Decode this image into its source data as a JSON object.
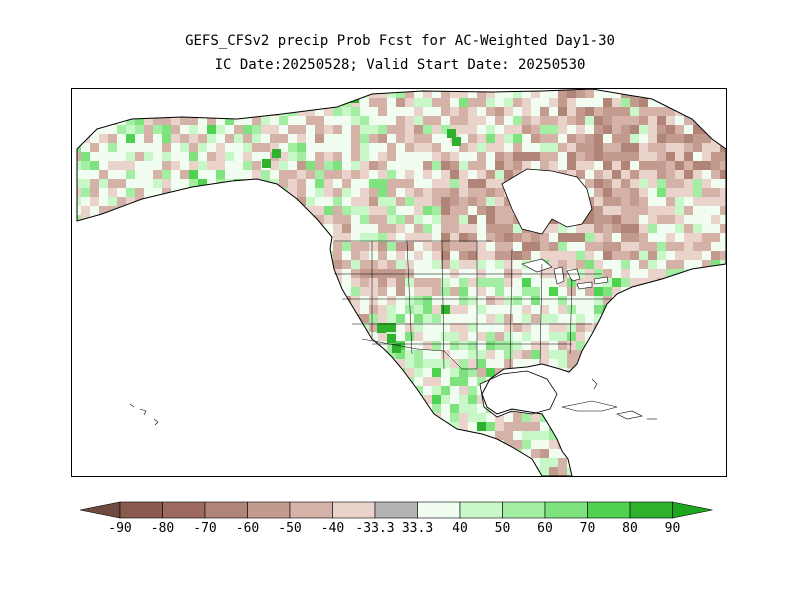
{
  "header": {
    "title": "GEFS_CFSv2 precip Prob Fcst for AC-Weighted Day1-30",
    "subtitle": "IC Date:20250528; Valid Start Date: 20250530"
  },
  "colors": {
    "ocean": "#ffffff",
    "coast": "#000000",
    "scale": [
      "#8a5a4e",
      "#9c6a5e",
      "#b08477",
      "#c29a8e",
      "#d4b2a7",
      "#ead3ca",
      "#b3b3b3",
      "#f0fdf0",
      "#c8f7c8",
      "#a3eea3",
      "#7ee37e",
      "#4fd24f",
      "#2eb22e"
    ]
  },
  "legend": {
    "tick_labels": [
      "-90",
      "-80",
      "-70",
      "-60",
      "-50",
      "-40",
      "-33.3",
      "33.3",
      "40",
      "50",
      "60",
      "70",
      "80",
      "90"
    ]
  }
}
